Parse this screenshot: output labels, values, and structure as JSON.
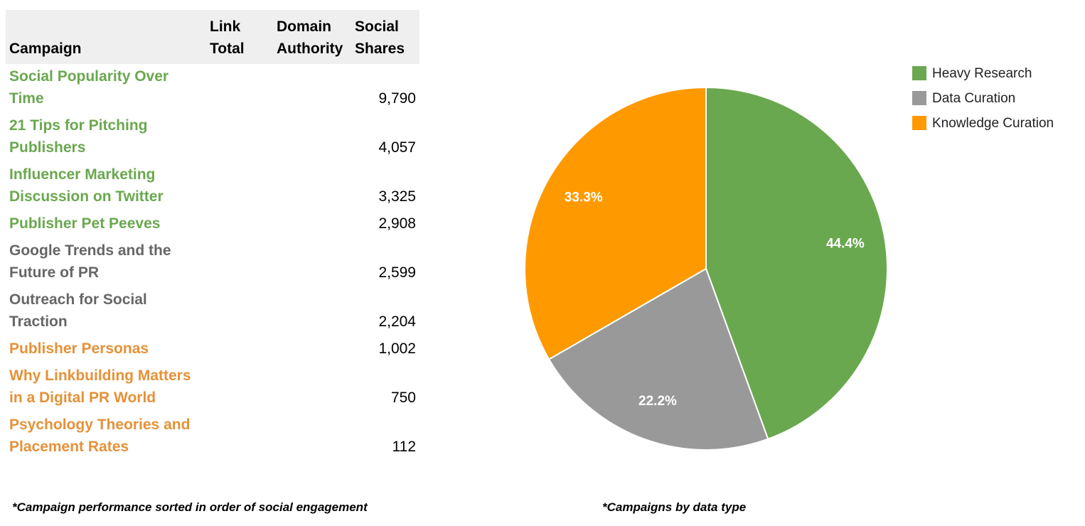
{
  "table": {
    "header": [
      "Campaign",
      "Link Total",
      "Domain Authority",
      "Social Shares"
    ],
    "rows": [
      {
        "campaign": "Social Popularity Over Time",
        "social_shares": "9,790",
        "color": "#6aa84f"
      },
      {
        "campaign": "21 Tips for Pitching Publishers",
        "social_shares": "4,057",
        "color": "#6aa84f"
      },
      {
        "campaign": "Influencer Marketing Discussion on Twitter",
        "social_shares": "3,325",
        "color": "#6aa84f"
      },
      {
        "campaign": "Publisher Pet Peeves",
        "social_shares": "2,908",
        "color": "#6aa84f"
      },
      {
        "campaign": "Google Trends and the Future of PR",
        "social_shares": "2,599",
        "color": "#666666"
      },
      {
        "campaign": "Outreach for Social Traction",
        "social_shares": "2,204",
        "color": "#666666"
      },
      {
        "campaign": "Publisher Personas",
        "social_shares": "1,002",
        "color": "#e69138"
      },
      {
        "campaign": "Why Linkbuilding Matters in a Digital PR World",
        "social_shares": "750",
        "color": "#e69138"
      },
      {
        "campaign": "Psychology Theories and Placement Rates",
        "social_shares": "112",
        "color": "#e69138"
      }
    ],
    "footnote": "*Campaign performance sorted in order of social engagement"
  },
  "chart_data": {
    "type": "pie",
    "categories": [
      "Heavy Research",
      "Data Curation",
      "Knowledge Curation"
    ],
    "values": [
      44.4,
      22.2,
      33.3
    ],
    "value_labels": [
      "44.4%",
      "22.2%",
      "33.3%"
    ],
    "colors": [
      "#6aa84f",
      "#999999",
      "#ff9900"
    ],
    "legend": "top-right",
    "footnote": "*Campaigns by data type"
  }
}
